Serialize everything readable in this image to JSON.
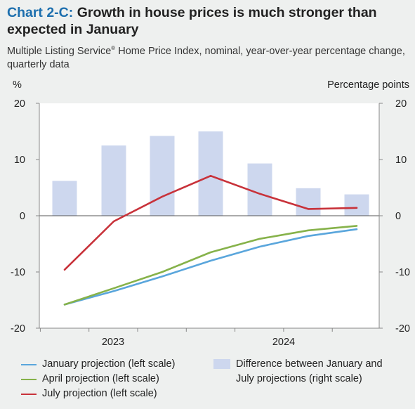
{
  "title": {
    "number": "Chart 2-C:",
    "text": "Growth in house prices is much stronger than expected in January"
  },
  "subtitle": {
    "before_mark": "Multiple Listing Service",
    "mark": "®",
    "after_mark": " Home Price Index, nominal, year-over-year percentage change, quarterly data"
  },
  "chart_data": {
    "type": "bar+line",
    "left_axis_label": "%",
    "right_axis_label": "Percentage points",
    "ylim_left": [
      -20,
      20
    ],
    "ylim_right": [
      -20,
      20
    ],
    "yticks": [
      -20,
      -10,
      0,
      10,
      20
    ],
    "x_tick_labels": [
      "2023",
      "2024"
    ],
    "x_quarters": [
      "2022Q4",
      "2023Q1",
      "2023Q2",
      "2023Q3",
      "2023Q4",
      "2024Q1",
      "2024Q2"
    ],
    "bars": {
      "name": "Difference between January and July projections (right scale)",
      "color": "#cdd7ee",
      "values": [
        6.2,
        12.5,
        14.2,
        15.0,
        9.3,
        4.9,
        3.8
      ]
    },
    "series": [
      {
        "name": "January projection (left scale)",
        "color": "#5aa6dc",
        "values": [
          -15.8,
          -13.4,
          -10.8,
          -8.0,
          -5.5,
          -3.6,
          -2.4
        ]
      },
      {
        "name": "April projection (left scale)",
        "color": "#86b24a",
        "values": [
          -15.8,
          -12.9,
          -10.0,
          -6.5,
          -4.1,
          -2.6,
          -1.8
        ]
      },
      {
        "name": "July projection (left scale)",
        "color": "#c8323a",
        "values": [
          -9.6,
          -1.0,
          3.4,
          7.1,
          3.9,
          1.2,
          1.4
        ]
      }
    ],
    "grid": false,
    "legend_position": "bottom"
  },
  "legend": {
    "items": [
      {
        "label": "January projection (left scale)",
        "color": "#5aa6dc",
        "kind": "line"
      },
      {
        "label": "April projection (left scale)",
        "color": "#86b24a",
        "kind": "line"
      },
      {
        "label": "July projection (left scale)",
        "color": "#c8323a",
        "kind": "line"
      },
      {
        "label_line1": "Difference between January and",
        "label_line2": "July projections (right scale)",
        "color": "#cdd7ee",
        "kind": "bar"
      }
    ]
  }
}
